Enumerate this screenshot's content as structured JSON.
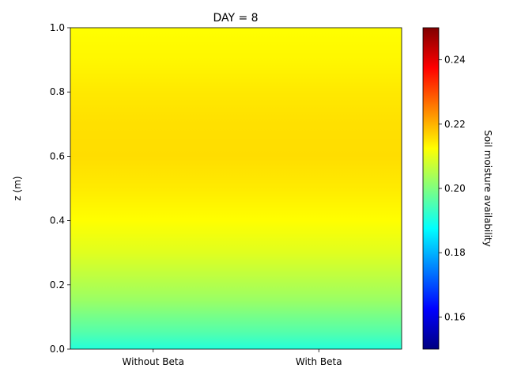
{
  "chart_data": {
    "type": "heatmap",
    "title": "DAY = 8",
    "xlabel": "",
    "ylabel": "z (m)",
    "categories": [
      "Without Beta",
      "With Beta"
    ],
    "ylim": [
      0,
      1
    ],
    "yticks": [
      0.0,
      0.2,
      0.4,
      0.6,
      0.8,
      1.0
    ],
    "ytick_labels": [
      "0.0",
      "0.2",
      "0.4",
      "0.6",
      "0.8",
      "1.0"
    ],
    "colorbar": {
      "label": "Soil moisture availability",
      "colormap": "jet",
      "range": [
        0.15,
        0.25
      ],
      "ticks": [
        0.16,
        0.18,
        0.2,
        0.22,
        0.24
      ],
      "tick_labels": [
        "0.16",
        "0.18",
        "0.20",
        "0.22",
        "0.24"
      ]
    },
    "profile": {
      "z": [
        0.0,
        0.05,
        0.1,
        0.15,
        0.2,
        0.3,
        0.4,
        0.5,
        0.6,
        0.7,
        0.8,
        0.9,
        1.0
      ],
      "values": [
        0.191,
        0.1955,
        0.199,
        0.2025,
        0.205,
        0.2095,
        0.2125,
        0.2145,
        0.2158,
        0.2155,
        0.2147,
        0.2133,
        0.2125
      ]
    }
  }
}
